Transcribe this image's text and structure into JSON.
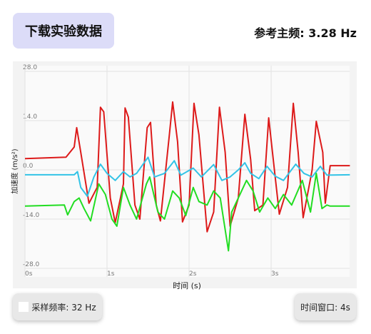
{
  "header": {
    "download_button": "下载实验数据",
    "reference_frequency": "参考主频: 3.28 Hz"
  },
  "chart_data": {
    "type": "line",
    "x_label": "时间 (s)",
    "y_label": "加速度 (m/s²)",
    "xlim": [
      0,
      4
    ],
    "ylim": [
      -28,
      28
    ],
    "grid": true,
    "xticks": [
      {
        "value": 0,
        "label": "0s"
      },
      {
        "value": 1,
        "label": "1s"
      },
      {
        "value": 2,
        "label": "2s"
      },
      {
        "value": 3,
        "label": "3s"
      }
    ],
    "yticks": [
      {
        "value": 28,
        "label": "28.0"
      },
      {
        "value": 14,
        "label": "14.0"
      },
      {
        "value": 0,
        "label": "0.0"
      },
      {
        "value": -14,
        "label": "-14.0"
      },
      {
        "value": -28,
        "label": "-28.0"
      }
    ],
    "series": [
      {
        "color": "#dd1a1a",
        "x": [
          0,
          0.5,
          0.6,
          0.63,
          0.68,
          0.78,
          0.88,
          0.92,
          0.96,
          1.04,
          1.1,
          1.2,
          1.22,
          1.26,
          1.34,
          1.4,
          1.49,
          1.53,
          1.6,
          1.65,
          1.76,
          1.8,
          1.86,
          1.92,
          2.0,
          2.06,
          2.12,
          2.22,
          2.3,
          2.37,
          2.44,
          2.5,
          2.6,
          2.68,
          2.75,
          2.8,
          2.9,
          2.97,
          3.04,
          3.1,
          3.2,
          3.27,
          3.33,
          3.39,
          3.5,
          3.55,
          3.63,
          3.66,
          3.72,
          3.96
        ],
        "values": [
          3.2,
          3.6,
          6.5,
          12,
          5,
          -9.5,
          -5,
          17.8,
          16.5,
          -8,
          -15,
          -4,
          17.6,
          15,
          -10,
          -14,
          12,
          13.5,
          -10,
          -14.5,
          10,
          19.3,
          8,
          -14.8,
          -10,
          18.9,
          10,
          -17.6,
          -12,
          17.8,
          5,
          -16,
          -8,
          15.8,
          3,
          -11.6,
          -10,
          14.8,
          0,
          -12.6,
          -5,
          18.9,
          5,
          -13.6,
          0,
          13.8,
          5,
          -9.5,
          1.2,
          1.2
        ]
      },
      {
        "color": "#33c3e6",
        "x": [
          0,
          0.6,
          0.64,
          0.68,
          0.76,
          0.84,
          0.92,
          1.0,
          1.1,
          1.2,
          1.28,
          1.36,
          1.5,
          1.58,
          1.7,
          1.82,
          1.9,
          2.05,
          2.15,
          2.3,
          2.4,
          2.5,
          2.6,
          2.68,
          2.75,
          2.85,
          2.95,
          3.05,
          3.15,
          3.3,
          3.4,
          3.5,
          3.6,
          3.68,
          3.96
        ],
        "values": [
          -1.4,
          -1.4,
          -0.5,
          -5,
          -7.5,
          -2,
          1.6,
          -1,
          -3,
          -0.5,
          -2,
          -1,
          3.6,
          -2,
          -1,
          2.6,
          -1.5,
          0.5,
          -2,
          1.5,
          -3,
          -2,
          0,
          2,
          -1,
          -2.5,
          1,
          -1.8,
          -3,
          1.6,
          -1,
          -2,
          1,
          -1.5,
          -1.4
        ]
      },
      {
        "color": "#22dd22",
        "x": [
          0,
          0.48,
          0.52,
          0.6,
          0.66,
          0.72,
          0.8,
          0.9,
          0.98,
          1.06,
          1.12,
          1.2,
          1.28,
          1.36,
          1.48,
          1.52,
          1.62,
          1.7,
          1.8,
          1.88,
          1.96,
          2.05,
          2.12,
          2.22,
          2.3,
          2.38,
          2.48,
          2.52,
          2.6,
          2.7,
          2.78,
          2.86,
          2.96,
          3.05,
          3.15,
          3.25,
          3.38,
          3.48,
          3.55,
          3.62,
          3.68,
          3.72,
          3.96
        ],
        "values": [
          -10.3,
          -10,
          -12.8,
          -9,
          -8,
          -11,
          -14.5,
          -4,
          -7,
          -14,
          -16,
          -5,
          -10,
          -14,
          -4,
          -2,
          -12,
          -14,
          -6,
          -8,
          -13,
          -5,
          -9,
          -10,
          -6,
          -8,
          -23,
          -12,
          -8,
          -3,
          -6,
          -12,
          -8,
          -11,
          -7,
          -10,
          -3,
          -12,
          -1,
          -11,
          -10,
          -10.3,
          -10.3
        ]
      }
    ]
  },
  "footer": {
    "sample_rate": "采样频率: 32 Hz",
    "time_window": "时间窗口: 4s"
  }
}
